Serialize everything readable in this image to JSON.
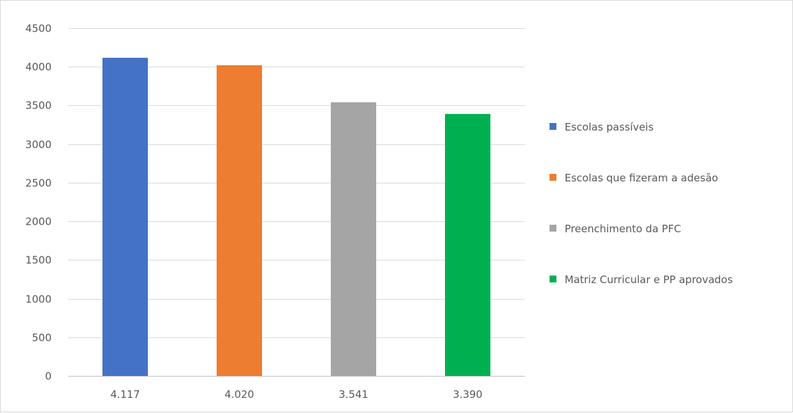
{
  "chart_data": {
    "type": "bar",
    "categories": [
      "4.117",
      "4.020",
      "3.541",
      "3.390"
    ],
    "values": [
      4117,
      4020,
      3541,
      3390
    ],
    "ylim": [
      0,
      4500
    ],
    "yticks": [
      0,
      500,
      1000,
      1500,
      2000,
      2500,
      3000,
      3500,
      4000,
      4500
    ],
    "grid": true,
    "legend_position": "right",
    "legend": [
      {
        "label": "Escolas passíveis",
        "color": "#4472c4"
      },
      {
        "label": "Escolas que fizeram a adesão",
        "color": "#ed7d31"
      },
      {
        "label": "Preenchimento da PFC",
        "color": "#a5a5a5"
      },
      {
        "label": "Matriz Curricular e PP aprovados",
        "color": "#00b050"
      }
    ],
    "title": "",
    "xlabel": "",
    "ylabel": ""
  }
}
